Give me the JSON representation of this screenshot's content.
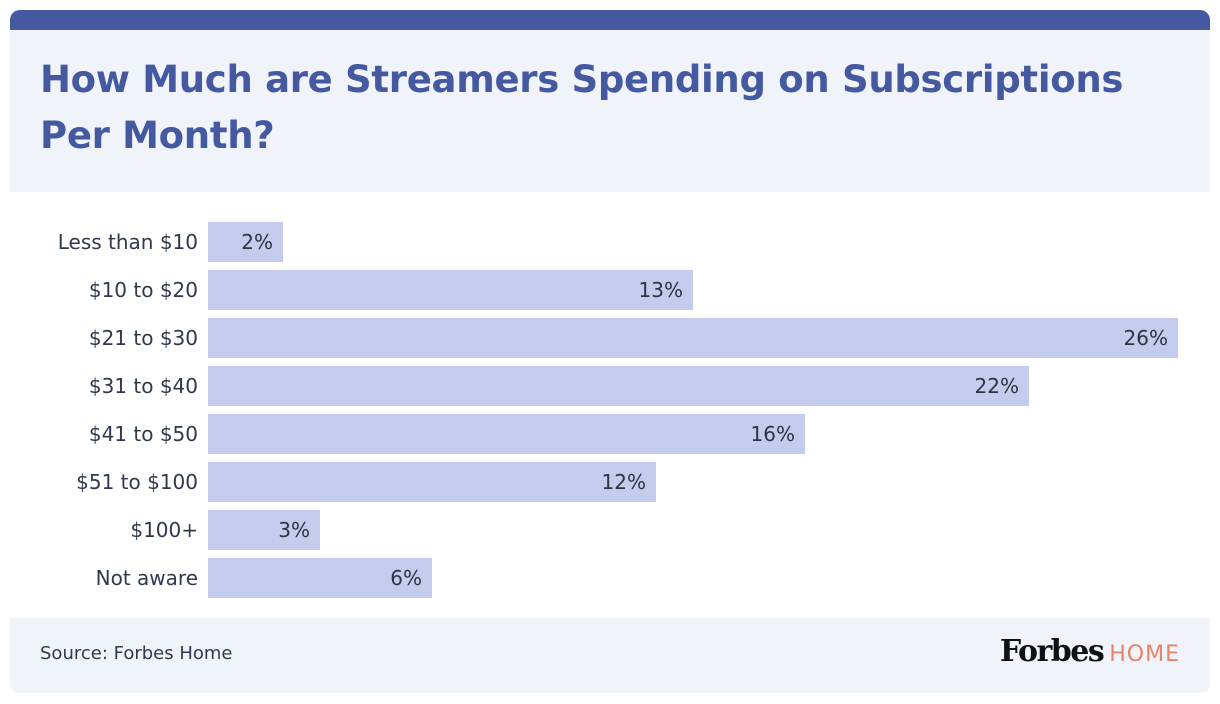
{
  "colors": {
    "header_bar": "#4559a1",
    "title": "#4559a1",
    "panel_bg": "#f0f3f9",
    "bar": "#c5cbed",
    "text": "#2e3a4c",
    "logo_home": "#e7826b"
  },
  "footer": {
    "source": "Source: Forbes Home",
    "logo_main": "Forbes",
    "logo_sub": "HOME"
  },
  "chart_data": {
    "type": "bar",
    "orientation": "horizontal",
    "title": "How Much are Streamers Spending on Subscriptions Per Month?",
    "xlabel": "",
    "ylabel": "",
    "categories": [
      "Less than $10",
      "$10 to $20",
      "$21 to $30",
      "$31 to $40",
      "$41 to $50",
      "$51 to $100",
      "$100+",
      "Not aware"
    ],
    "values": [
      2,
      13,
      26,
      22,
      16,
      12,
      3,
      6
    ],
    "value_labels": [
      "2%",
      "13%",
      "26%",
      "22%",
      "16%",
      "12%",
      "3%",
      "6%"
    ],
    "unit": "%",
    "xlim": [
      0,
      26
    ],
    "grid": false,
    "legend": "none"
  }
}
